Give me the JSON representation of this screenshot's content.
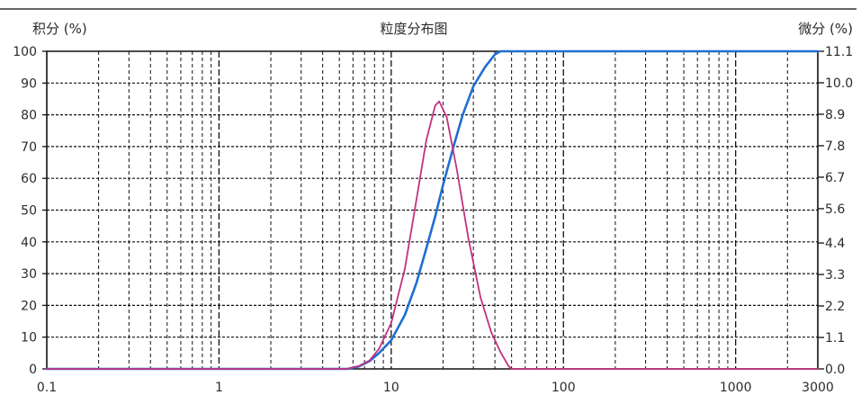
{
  "chart_data": {
    "type": "line",
    "title": "粒度分布图",
    "ylabel_left": "积分 (%)",
    "ylabel_right": "微分 (%)",
    "xscale": "log",
    "xlim": [
      0.1,
      3000
    ],
    "ylim_left": [
      0,
      100
    ],
    "ylim_right": [
      0,
      11.1
    ],
    "grid": true,
    "x_ticks": [
      "0.1",
      "1",
      "10",
      "100",
      "1000",
      "3000"
    ],
    "y_ticks_left": [
      "0",
      "10",
      "20",
      "30",
      "40",
      "50",
      "60",
      "70",
      "80",
      "90",
      "100"
    ],
    "y_ticks_right": [
      "0.0",
      "1.1",
      "2.2",
      "3.3",
      "4.4",
      "5.6",
      "6.7",
      "7.8",
      "8.9",
      "10.0",
      "11.1"
    ],
    "series": [
      {
        "axis": "left",
        "color": "#1f6fd1",
        "x": [
          0.1,
          5.6,
          6.5,
          7.5,
          8.5,
          10,
          12,
          14,
          16,
          18,
          20,
          23,
          26,
          30,
          35,
          40,
          43,
          50,
          100,
          1000,
          3000
        ],
        "y": [
          0,
          0,
          0.8,
          2.5,
          5,
          9,
          17,
          27,
          38,
          48,
          58,
          70,
          80,
          89,
          95,
          99,
          100,
          100,
          100,
          100,
          100
        ]
      },
      {
        "axis": "right",
        "color": "#c2327e",
        "x": [
          0.1,
          5.5,
          6.5,
          7.5,
          8.5,
          10,
          12,
          14,
          16,
          18,
          19,
          21,
          24,
          28,
          33,
          38,
          43,
          48,
          50,
          100,
          1000,
          3000
        ],
        "y": [
          0,
          0,
          0.1,
          0.3,
          0.7,
          1.6,
          3.5,
          5.9,
          8.0,
          9.2,
          9.35,
          8.8,
          7.0,
          4.6,
          2.5,
          1.3,
          0.6,
          0.1,
          0,
          0,
          0,
          0
        ]
      }
    ]
  }
}
